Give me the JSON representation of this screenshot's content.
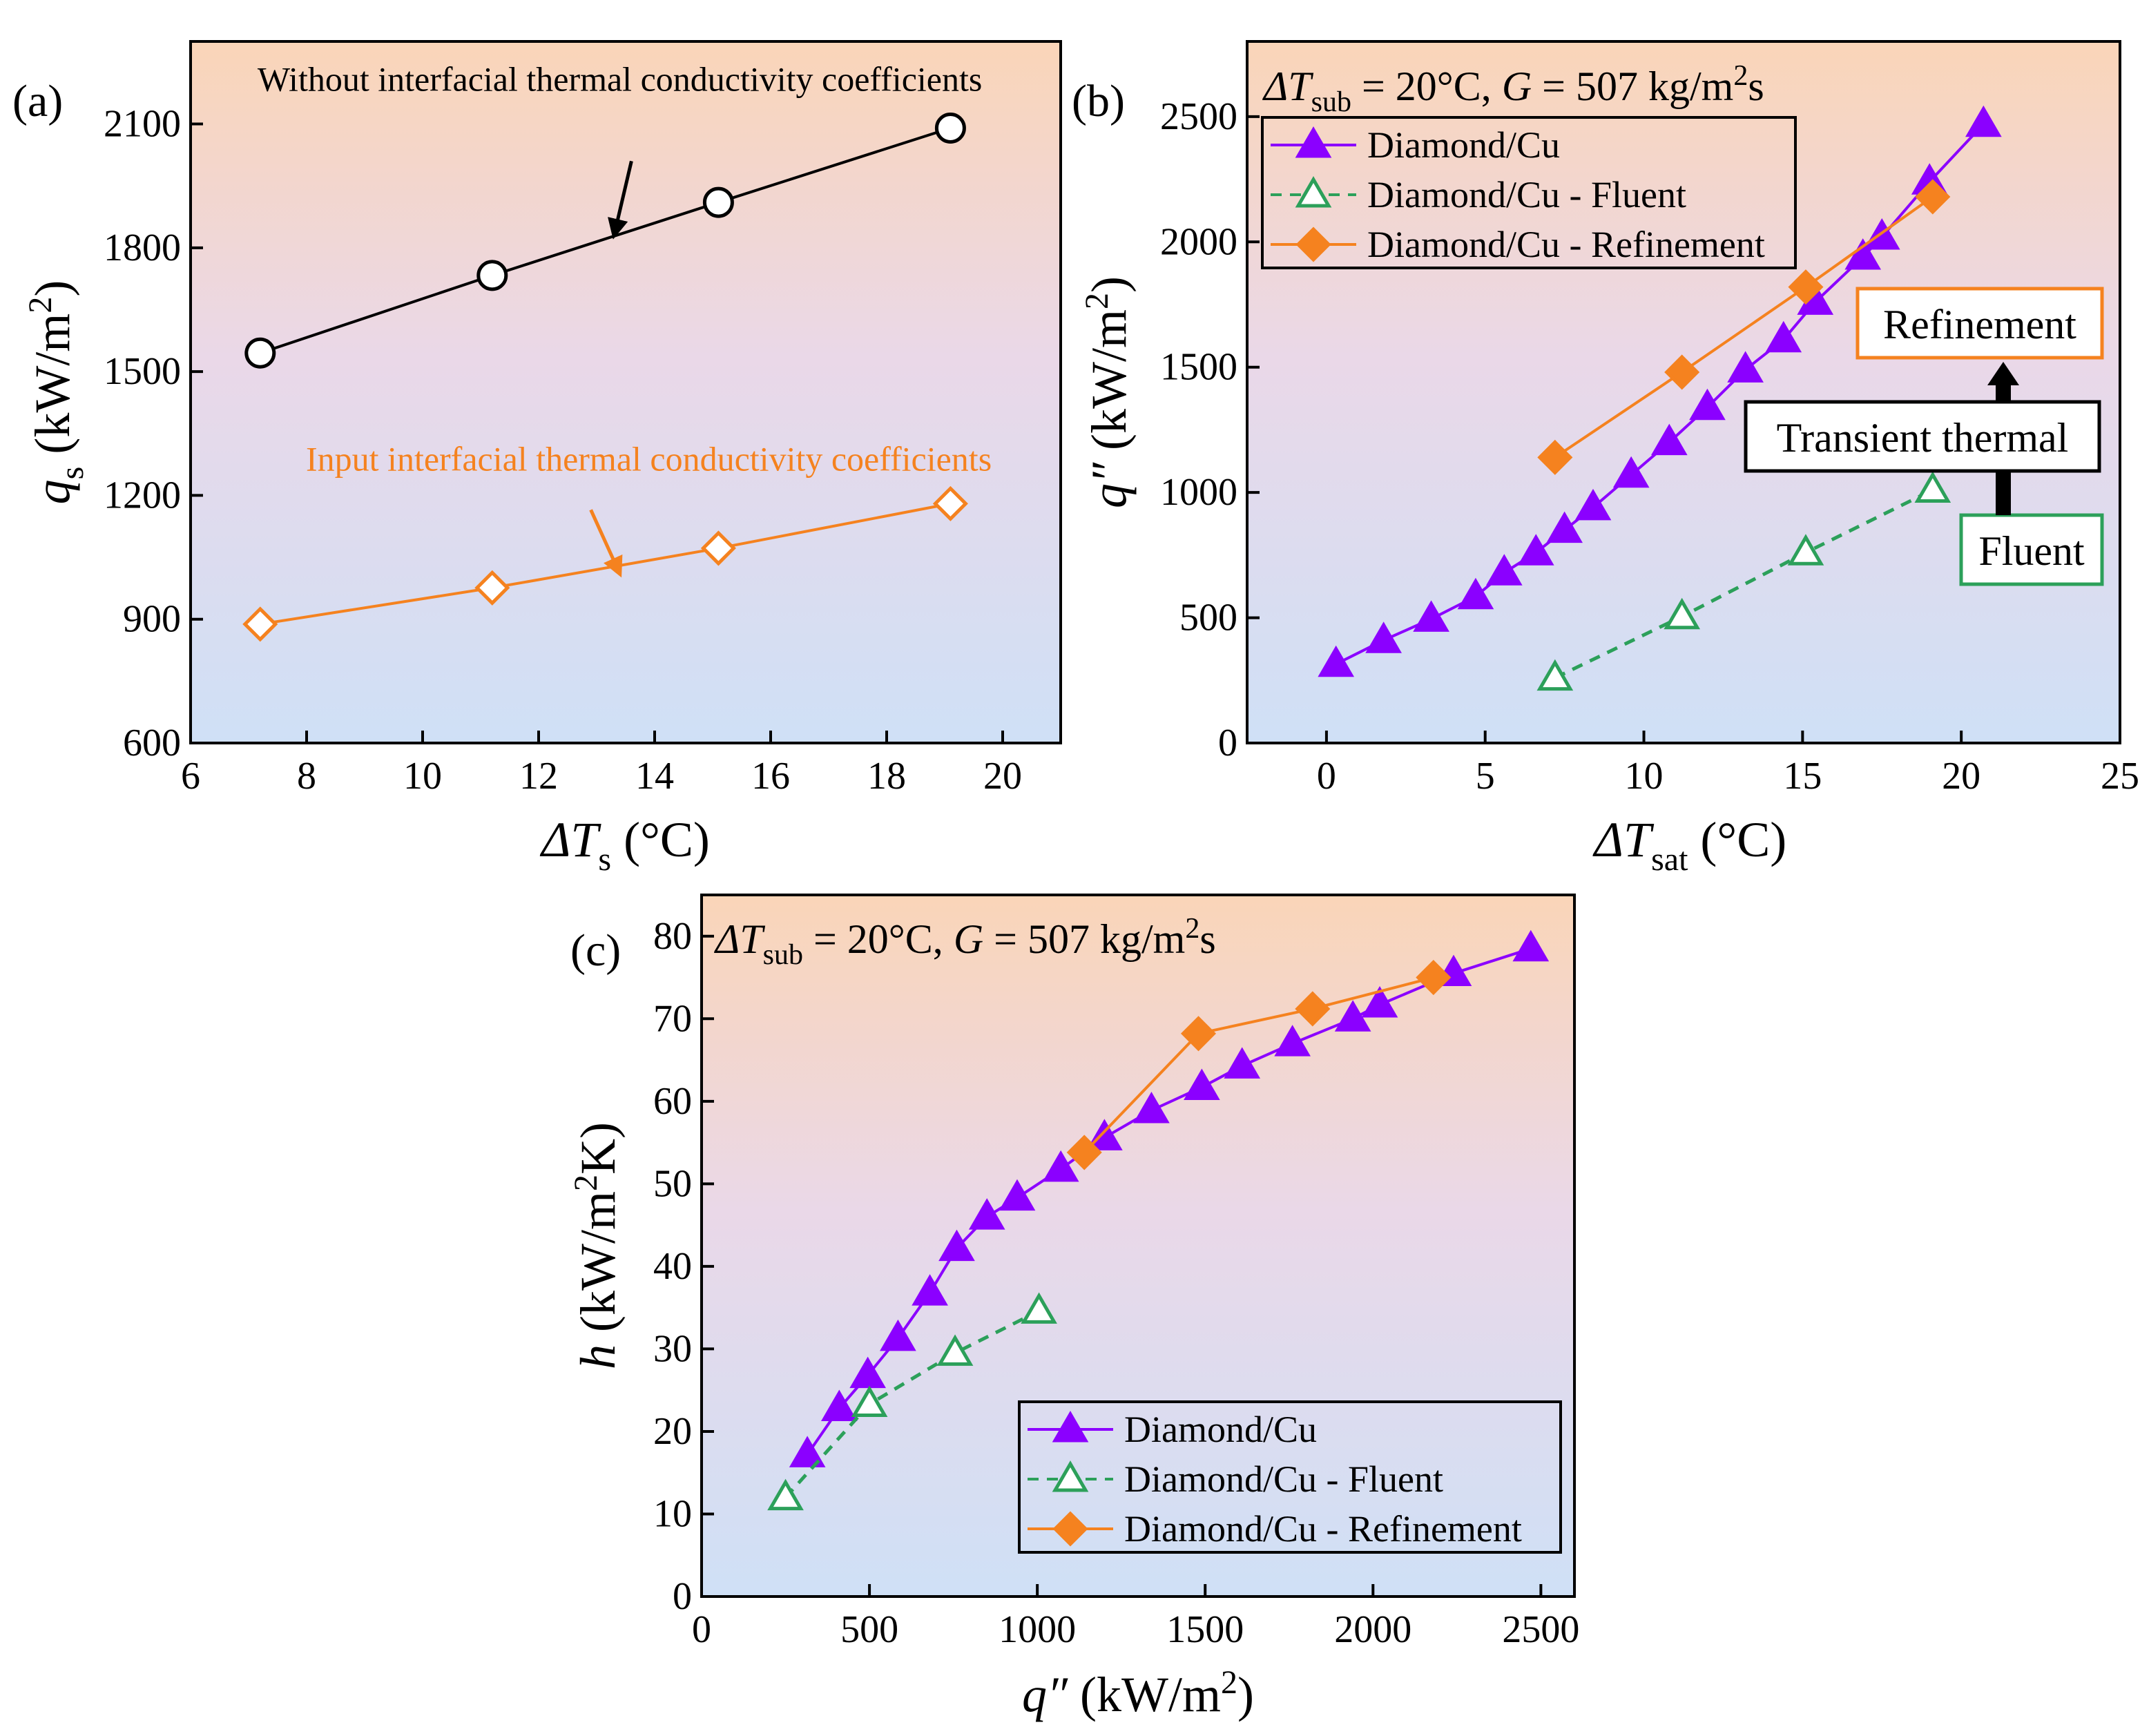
{
  "chart_data": [
    {
      "id": "a",
      "type": "line",
      "panel_label": "(a)",
      "xlabel": "ΔT",
      "xlabel_sub": "s",
      "xlabel_unit": "(°C)",
      "ylabel": "q",
      "ylabel_sub": "s",
      "ylabel_unit": "(kW/m",
      "ylabel_sup": "2",
      "ylabel_close": ")",
      "xlim": [
        6,
        21
      ],
      "ylim": [
        600,
        2300
      ],
      "xticks": [
        "6",
        "8",
        "10",
        "12",
        "14",
        "16",
        "18",
        "20"
      ],
      "yticks": [
        "600",
        "900",
        "1200",
        "1500",
        "1800",
        "2100"
      ],
      "xtick_values": [
        6,
        8,
        10,
        12,
        14,
        16,
        18,
        20
      ],
      "ytick_values": [
        600,
        900,
        1200,
        1500,
        1800,
        2100
      ],
      "series": [
        {
          "name": "Without interfacial thermal conductivity coefficients",
          "color": "#000000",
          "marker": "circle-open",
          "dash": "solid",
          "x": [
            7.2,
            11.2,
            15.1,
            19.1
          ],
          "y": [
            1545,
            1733,
            1910,
            2090
          ]
        },
        {
          "name": "Input interfacial thermal conductivity coefficients",
          "color": "#f5821f",
          "marker": "diamond-open",
          "dash": "solid",
          "x": [
            7.2,
            11.2,
            15.1,
            19.1
          ],
          "y": [
            888,
            976,
            1072,
            1180
          ]
        }
      ],
      "annotations": [
        {
          "text": "Without interfacial thermal conductivity coefficients",
          "color": "#000000",
          "at": [
            13.4,
            2180
          ],
          "arrow_from": [
            13.6,
            2010
          ],
          "arrow_to": [
            13.3,
            1830
          ]
        },
        {
          "text": "Input interfacial thermal conductivity coefficients",
          "color": "#f5821f",
          "at": [
            13.9,
            1260
          ],
          "arrow_from": [
            12.9,
            1165
          ],
          "arrow_to": [
            13.4,
            1010
          ]
        }
      ]
    },
    {
      "id": "b",
      "type": "line",
      "panel_label": "(b)",
      "condition_prefix": "ΔT",
      "condition_sub": "sub",
      "condition_mid": " = 20°C, ",
      "condition_g": "G",
      "condition_rest": " = 507 kg/m",
      "condition_sup": "2",
      "condition_end": "s",
      "xlabel": "ΔT",
      "xlabel_sub": "sat",
      "xlabel_unit": "(°C)",
      "ylabel": "q″",
      "ylabel_unit": "(kW/m",
      "ylabel_sup": "2",
      "ylabel_close": ")",
      "xlim": [
        -2.5,
        25
      ],
      "ylim": [
        0,
        2800
      ],
      "xticks": [
        "0",
        "5",
        "10",
        "15",
        "20",
        "25"
      ],
      "yticks": [
        "0",
        "500",
        "1000",
        "1500",
        "2000",
        "2500"
      ],
      "xtick_values": [
        0,
        5,
        10,
        15,
        20,
        25
      ],
      "ytick_values": [
        0,
        500,
        1000,
        1500,
        2000,
        2500
      ],
      "legend": "top-left",
      "series": [
        {
          "name": "Diamond/Cu",
          "color": "#8b00ff",
          "marker": "triangle-filled",
          "dash": "solid",
          "x": [
            0.3,
            1.8,
            3.3,
            4.7,
            5.6,
            6.6,
            7.5,
            8.4,
            9.6,
            10.8,
            12.0,
            13.2,
            14.4,
            15.4,
            16.9,
            17.5,
            19.0,
            20.7
          ],
          "y": [
            315,
            410,
            495,
            585,
            680,
            760,
            850,
            940,
            1070,
            1200,
            1340,
            1490,
            1610,
            1760,
            1940,
            2020,
            2240,
            2470
          ]
        },
        {
          "name": "Diamond/Cu - Fluent",
          "color": "#2ca05a",
          "marker": "triangle-open",
          "dash": "dashed",
          "x": [
            7.2,
            11.2,
            15.1,
            19.1
          ],
          "y": [
            260,
            505,
            760,
            1010
          ]
        },
        {
          "name": "Diamond/Cu - Refinement",
          "color": "#f5821f",
          "marker": "diamond-filled",
          "dash": "solid",
          "x": [
            7.2,
            11.2,
            15.1,
            19.1
          ],
          "y": [
            1140,
            1480,
            1820,
            2180
          ]
        }
      ],
      "annotations": {
        "refinement": "Refinement",
        "transient": "Transient thermal",
        "fluent": "Fluent"
      }
    },
    {
      "id": "c",
      "type": "line",
      "panel_label": "(c)",
      "condition_prefix": "ΔT",
      "condition_sub": "sub",
      "condition_mid": " = 20°C, ",
      "condition_g": "G",
      "condition_rest": " = 507 kg/m",
      "condition_sup": "2",
      "condition_end": "s",
      "xlabel": "q″",
      "xlabel_unit": "(kW/m",
      "xlabel_sup": "2",
      "xlabel_close": ")",
      "ylabel": "h",
      "ylabel_unit": "(kW/m",
      "ylabel_sup": "2",
      "ylabel_close": "K)",
      "xlim": [
        0,
        2600
      ],
      "ylim": [
        0,
        85
      ],
      "xticks": [
        "0",
        "500",
        "1000",
        "1500",
        "2000",
        "2500"
      ],
      "yticks": [
        "0",
        "10",
        "20",
        "30",
        "40",
        "50",
        "60",
        "70",
        "80"
      ],
      "xtick_values": [
        0,
        500,
        1000,
        1500,
        2000,
        2500
      ],
      "ytick_values": [
        0,
        10,
        20,
        30,
        40,
        50,
        60,
        70,
        80
      ],
      "legend": "bottom-right",
      "series": [
        {
          "name": "Diamond/Cu",
          "color": "#8b00ff",
          "marker": "triangle-filled",
          "dash": "solid",
          "x": [
            315,
            410,
            495,
            585,
            680,
            760,
            850,
            940,
            1070,
            1200,
            1340,
            1490,
            1610,
            1760,
            1940,
            2020,
            2240,
            2470
          ],
          "y": [
            17.2,
            22.8,
            26.8,
            31.3,
            36.8,
            42.2,
            46.0,
            48.3,
            51.8,
            55.6,
            58.9,
            61.7,
            64.3,
            67.0,
            70.0,
            71.7,
            75.5,
            78.5
          ]
        },
        {
          "name": "Diamond/Cu - Fluent",
          "color": "#2ca05a",
          "marker": "triangle-open",
          "dash": "dashed",
          "x": [
            250,
            500,
            755,
            1005
          ],
          "y": [
            12.0,
            23.3,
            29.5,
            34.6
          ]
        },
        {
          "name": "Diamond/Cu - Refinement",
          "color": "#f5821f",
          "marker": "diamond-filled",
          "dash": "solid",
          "x": [
            1140,
            1480,
            1820,
            2180
          ],
          "y": [
            53.8,
            68.2,
            71.2,
            75.0
          ]
        }
      ]
    }
  ]
}
